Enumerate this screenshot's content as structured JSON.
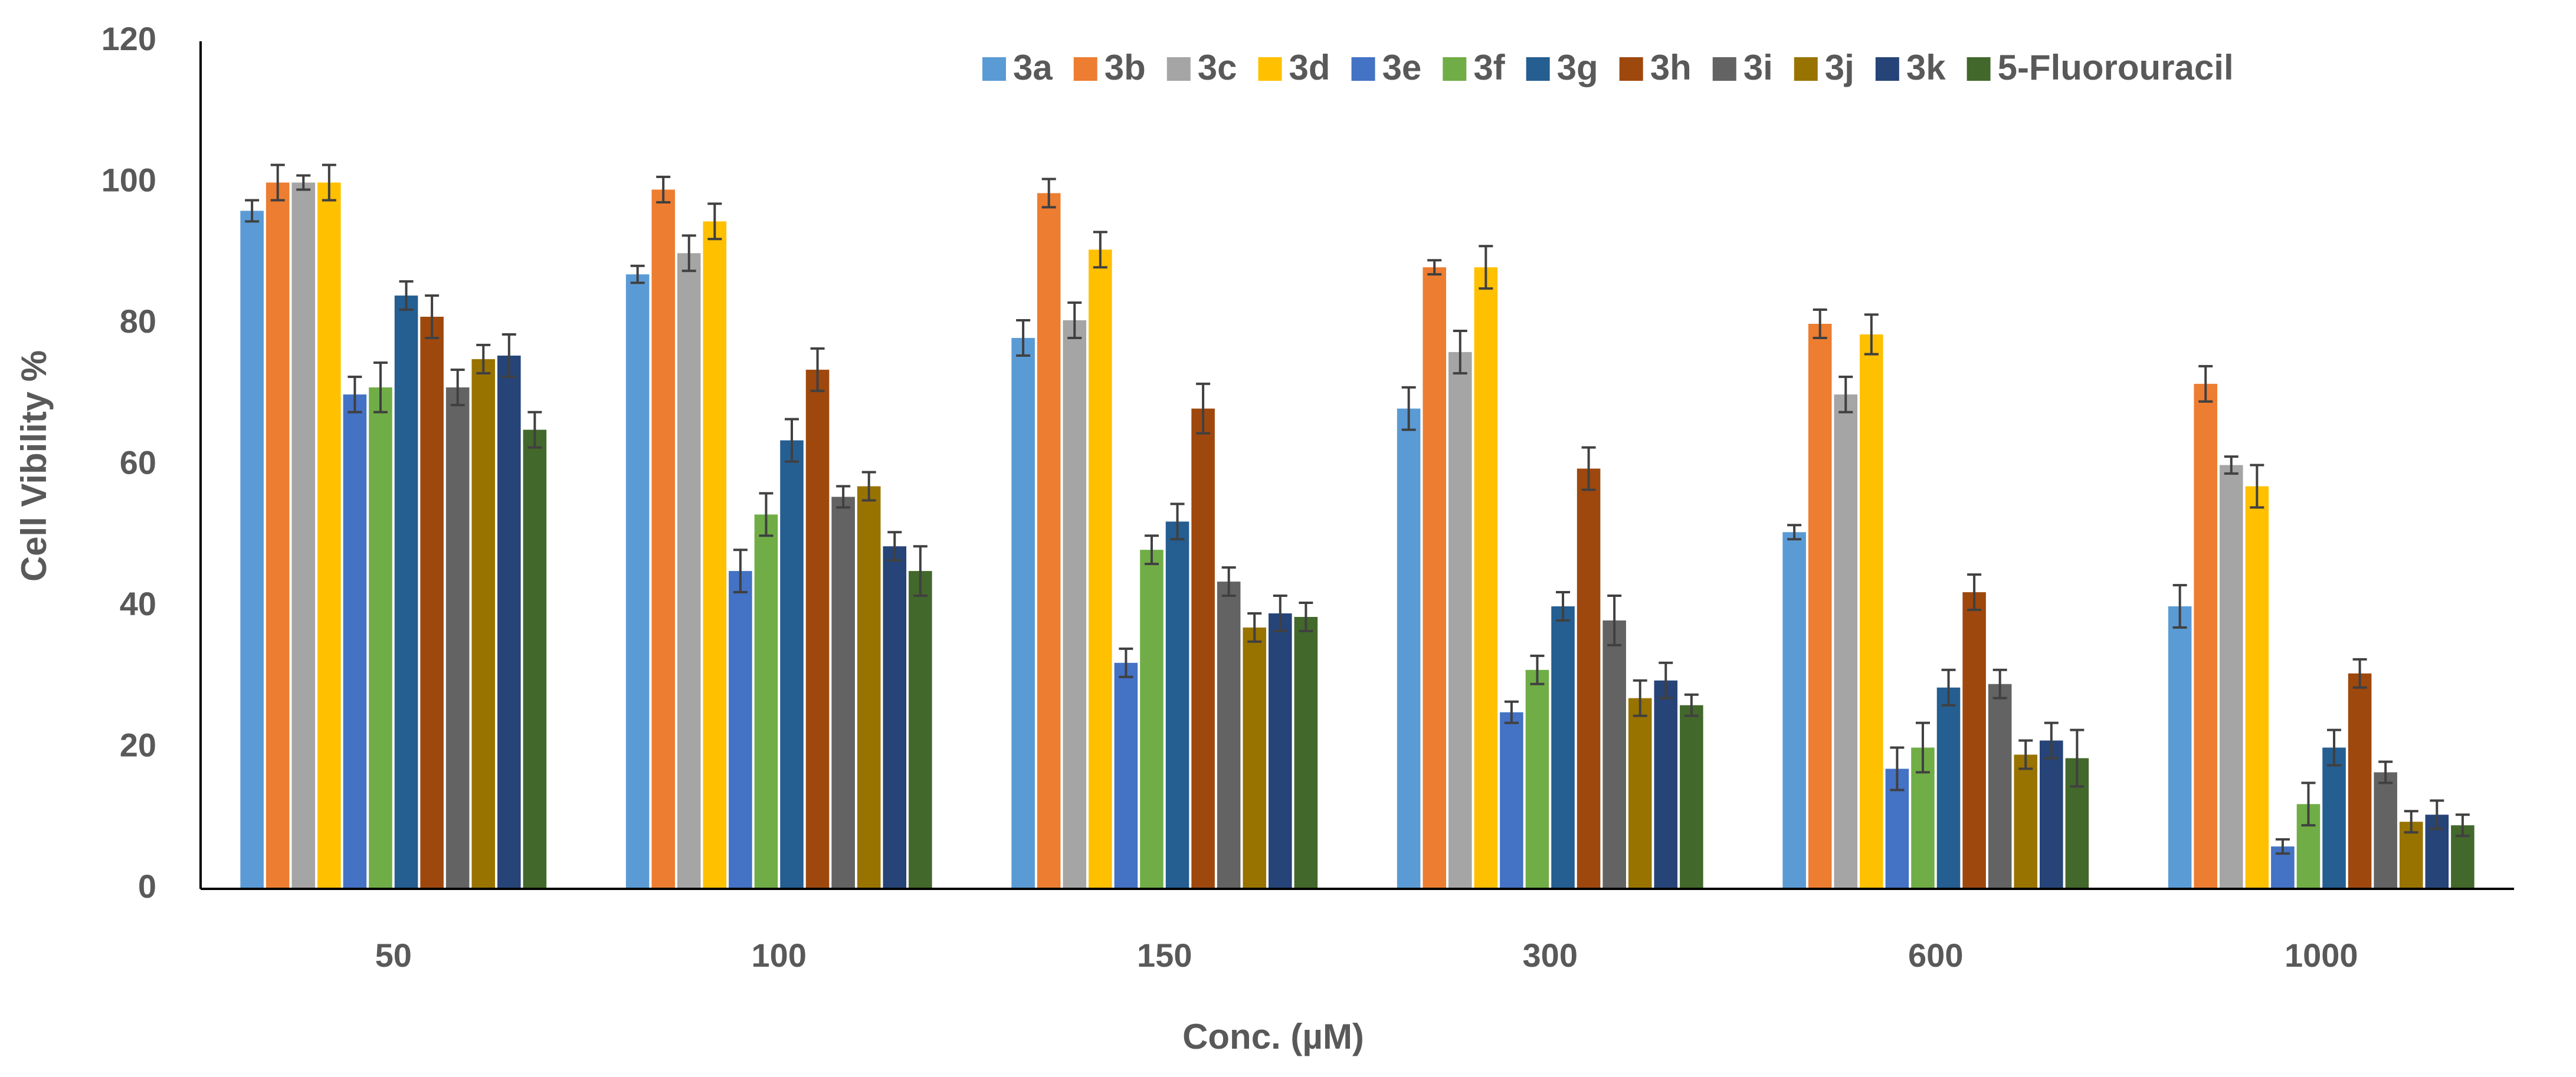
{
  "chart_data": {
    "type": "bar",
    "x_label": "Conc. (µM)",
    "y_label": "Cell Vibility %",
    "categories": [
      "50",
      "100",
      "150",
      "300",
      "600",
      "1000"
    ],
    "ylim": [
      0,
      120
    ],
    "yticks": [
      0,
      20,
      40,
      60,
      80,
      100,
      120
    ],
    "legend": "top-right",
    "series": [
      {
        "name": "3a",
        "color": "#5b9bd5",
        "values": [
          96,
          87,
          78,
          68,
          50.5,
          40
        ],
        "errors": [
          1.5,
          1.2,
          2.5,
          3,
          1,
          3
        ]
      },
      {
        "name": "3b",
        "color": "#ed7d31",
        "values": [
          100,
          99,
          98.5,
          88,
          80,
          71.5
        ],
        "errors": [
          2.5,
          1.8,
          2,
          1,
          2,
          2.5
        ]
      },
      {
        "name": "3c",
        "color": "#a5a5a5",
        "values": [
          100,
          90,
          80.5,
          76,
          70,
          60
        ],
        "errors": [
          1,
          2.5,
          2.5,
          3,
          2.5,
          1.2
        ]
      },
      {
        "name": "3d",
        "color": "#ffc000",
        "values": [
          100,
          94.5,
          90.5,
          88,
          78.5,
          57
        ],
        "errors": [
          2.5,
          2.5,
          2.5,
          3,
          2.8,
          3
        ]
      },
      {
        "name": "3e",
        "color": "#4472c4",
        "values": [
          70,
          45,
          32,
          25,
          17,
          6
        ],
        "errors": [
          2.5,
          3,
          2,
          1.5,
          3,
          1
        ]
      },
      {
        "name": "3f",
        "color": "#70ad47",
        "values": [
          71,
          53,
          48,
          31,
          20,
          12
        ],
        "errors": [
          3.5,
          3,
          2,
          2,
          3.5,
          3
        ]
      },
      {
        "name": "3g",
        "color": "#255e91",
        "values": [
          84,
          63.5,
          52,
          40,
          28.5,
          20
        ],
        "errors": [
          2,
          3,
          2.5,
          2,
          2.5,
          2.5
        ]
      },
      {
        "name": "3h",
        "color": "#9e480e",
        "values": [
          81,
          73.5,
          68,
          59.5,
          42,
          30.5
        ],
        "errors": [
          3,
          3,
          3.5,
          3,
          2.5,
          2
        ]
      },
      {
        "name": "3i",
        "color": "#636363",
        "values": [
          71,
          55.5,
          43.5,
          38,
          29,
          16.5
        ],
        "errors": [
          2.5,
          1.5,
          2,
          3.5,
          2,
          1.5
        ]
      },
      {
        "name": "3j",
        "color": "#997300",
        "values": [
          75,
          57,
          37,
          27,
          19,
          9.5
        ],
        "errors": [
          2,
          2,
          2,
          2.5,
          2,
          1.5
        ]
      },
      {
        "name": "3k",
        "color": "#264478",
        "values": [
          75.5,
          48.5,
          39,
          29.5,
          21,
          10.5
        ],
        "errors": [
          3,
          2,
          2.5,
          2.5,
          2.5,
          2
        ]
      },
      {
        "name": "5-Fluorouracil",
        "color": "#43682b",
        "values": [
          65,
          45,
          38.5,
          26,
          18.5,
          9
        ],
        "errors": [
          2.5,
          3.5,
          2,
          1.5,
          4,
          1.5
        ]
      }
    ]
  }
}
